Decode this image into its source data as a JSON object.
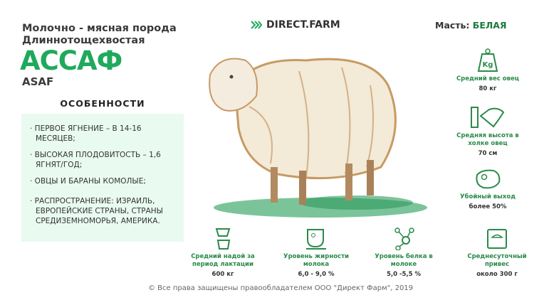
{
  "header": {
    "subtitle_line1": "Молочно - мясная порода",
    "subtitle_line2": "Длиннотощехвостая",
    "title": "АССАФ",
    "latin": "ASAF",
    "logo": "DIRECT.FARM",
    "color_label": "Масть:",
    "color_value": "БЕЛАЯ"
  },
  "features": {
    "heading": "ОСОБЕННОСТИ",
    "items": [
      "· ПЕРВОЕ ЯГНЕНИЕ – В 14-16 МЕСЯЦЕВ;",
      "· ВЫСОКАЯ ПЛОДОВИТОСТЬ – 1,6 ЯГНЯТ/ГОД;",
      "· ОВЦЫ И БАРАНЫ КОМОЛЫЕ;",
      "· РАСПРОСТРАНЕНИЕ: ИЗРАИЛЬ, ЕВРОПЕЙСКИЕ СТРАНЫ, СТРАНЫ СРЕДИЗЕМНОМОРЬЯ, АМЕРИКА."
    ]
  },
  "side_stats": [
    {
      "icon": "weight-kg-icon",
      "label": "Средний вес овец",
      "value": "80 кг"
    },
    {
      "icon": "height-ruler-sheep-icon",
      "label": "Средняя высота в холке овец",
      "value": "70 см"
    },
    {
      "icon": "meat-steak-icon",
      "label": "Убойный выход",
      "value": "более 50%"
    }
  ],
  "bottom_stats": [
    {
      "icon": "udder-bucket-icon",
      "label": "Средний надой за период лактации",
      "value": "600 кг"
    },
    {
      "icon": "milk-jug-icon",
      "label": "Уровень жирности молока",
      "value": "6,0 - 9,0 %"
    },
    {
      "icon": "molecule-icon",
      "label": "Уровень белка в молоке",
      "value": "5,0 -5,5 %"
    },
    {
      "icon": "scale-icon",
      "label": "Среднесуточный привес",
      "value": "около 300 г"
    }
  ],
  "footer": {
    "copyright": "© Все права защищены правообладателем  ООО \"Директ Фарм\", 2019"
  },
  "colors": {
    "accent": "#1fa95c",
    "dark_green": "#2a8a4a",
    "panel": "#e9faf1"
  }
}
